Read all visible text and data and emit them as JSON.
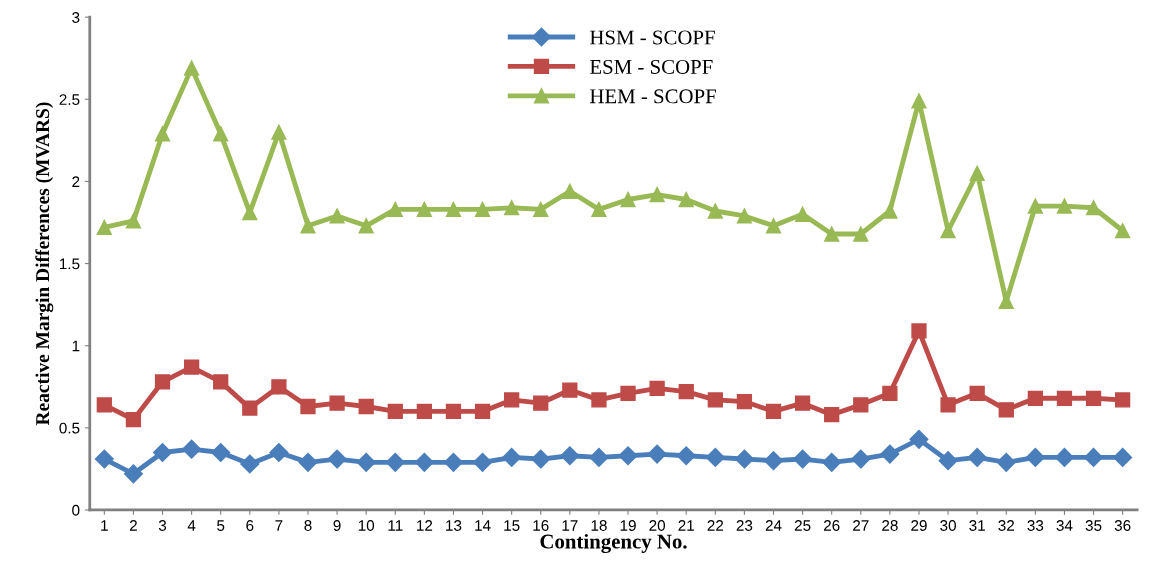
{
  "chart_data": {
    "type": "line",
    "xlabel": "Contingency No.",
    "ylabel": "Reactive Margin Differences (MVARS)",
    "categories": [
      "1",
      "2",
      "3",
      "4",
      "5",
      "6",
      "7",
      "8",
      "9",
      "10",
      "11",
      "12",
      "13",
      "14",
      "15",
      "16",
      "17",
      "18",
      "19",
      "20",
      "21",
      "22",
      "23",
      "24",
      "25",
      "26",
      "27",
      "28",
      "29",
      "30",
      "31",
      "32",
      "33",
      "34",
      "35",
      "36"
    ],
    "series": [
      {
        "name": "HSM - SCOPF",
        "color": "#4a7ebb",
        "marker": "diamond",
        "values": [
          0.31,
          0.22,
          0.35,
          0.37,
          0.35,
          0.28,
          0.35,
          0.29,
          0.31,
          0.29,
          0.29,
          0.29,
          0.29,
          0.29,
          0.32,
          0.31,
          0.33,
          0.32,
          0.33,
          0.34,
          0.33,
          0.32,
          0.31,
          0.3,
          0.31,
          0.29,
          0.31,
          0.34,
          0.43,
          0.3,
          0.32,
          0.29,
          0.32,
          0.32,
          0.32,
          0.32
        ]
      },
      {
        "name": "ESM - SCOPF",
        "color": "#be4b48",
        "marker": "square",
        "values": [
          0.64,
          0.55,
          0.78,
          0.87,
          0.78,
          0.62,
          0.75,
          0.63,
          0.65,
          0.63,
          0.6,
          0.6,
          0.6,
          0.6,
          0.67,
          0.65,
          0.73,
          0.67,
          0.71,
          0.74,
          0.72,
          0.67,
          0.66,
          0.6,
          0.65,
          0.58,
          0.64,
          0.71,
          1.09,
          0.64,
          0.71,
          0.61,
          0.68,
          0.68,
          0.68,
          0.67
        ]
      },
      {
        "name": "HEM - SCOPF",
        "color": "#98b954",
        "marker": "triangle",
        "values": [
          1.72,
          1.76,
          2.29,
          2.69,
          2.29,
          1.81,
          2.3,
          1.73,
          1.79,
          1.73,
          1.83,
          1.83,
          1.83,
          1.83,
          1.84,
          1.83,
          1.94,
          1.83,
          1.89,
          1.92,
          1.89,
          1.82,
          1.79,
          1.73,
          1.8,
          1.68,
          1.68,
          1.82,
          2.49,
          1.7,
          2.05,
          1.27,
          1.85,
          1.85,
          1.84,
          1.7
        ]
      }
    ],
    "ylim": [
      0,
      3
    ],
    "yticks": [
      0,
      0.5,
      1,
      1.5,
      2,
      2.5,
      3
    ],
    "grid": false,
    "legend": "top",
    "line_style": "solid"
  }
}
